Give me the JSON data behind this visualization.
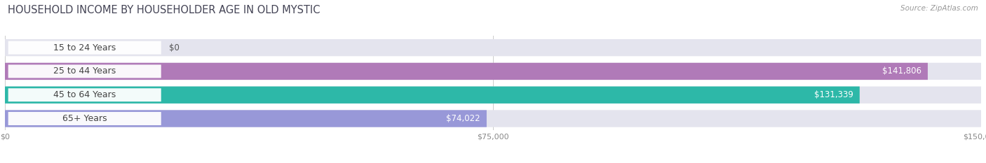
{
  "title": "HOUSEHOLD INCOME BY HOUSEHOLDER AGE IN OLD MYSTIC",
  "source": "Source: ZipAtlas.com",
  "categories": [
    "15 to 24 Years",
    "25 to 44 Years",
    "45 to 64 Years",
    "65+ Years"
  ],
  "values": [
    0,
    141806,
    131339,
    74022
  ],
  "bar_colors": [
    "#aabbd8",
    "#b07ab8",
    "#2db8a8",
    "#9898d8"
  ],
  "bar_bg_color": "#e4e4ee",
  "xlim": [
    0,
    150000
  ],
  "xticks": [
    0,
    75000,
    150000
  ],
  "xtick_labels": [
    "$0",
    "$75,000",
    "$150,000"
  ],
  "value_labels": [
    "$0",
    "$141,806",
    "$131,339",
    "$74,022"
  ],
  "title_fontsize": 10.5,
  "source_fontsize": 7.5,
  "label_fontsize": 9,
  "bar_height": 0.72,
  "background_color": "#ffffff"
}
